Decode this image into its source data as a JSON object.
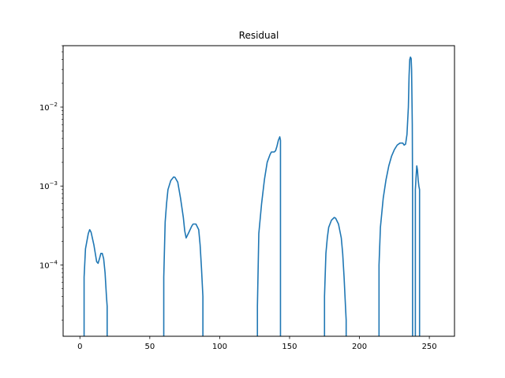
{
  "chart_data": {
    "type": "line",
    "title": "Residual",
    "xlabel": "",
    "ylabel": "",
    "yscale": "log",
    "xlim": [
      -12,
      268
    ],
    "ylim": [
      1.25e-05,
      0.06
    ],
    "grid": false,
    "line_color": "#1f77b4",
    "x_ticks": [
      {
        "value": 0,
        "label": "0"
      },
      {
        "value": 50,
        "label": "50"
      },
      {
        "value": 100,
        "label": "100"
      },
      {
        "value": 150,
        "label": "150"
      },
      {
        "value": 200,
        "label": "200"
      },
      {
        "value": 250,
        "label": "250"
      }
    ],
    "y_ticks": [
      {
        "value": 0.0001,
        "base": "10",
        "exp": "−4"
      },
      {
        "value": 0.001,
        "base": "10",
        "exp": "−3"
      },
      {
        "value": 0.01,
        "base": "10",
        "exp": "−2"
      }
    ],
    "segments": [
      {
        "x": [
          3,
          3,
          4,
          6,
          7,
          8,
          10,
          12,
          13,
          14,
          15,
          16,
          17,
          18,
          19,
          19.5,
          19.5
        ],
        "y": [
          1.25e-05,
          7e-05,
          0.00016,
          0.00025,
          0.00028,
          0.00026,
          0.00018,
          0.00011,
          0.000105,
          0.00012,
          0.00014,
          0.00014,
          0.00012,
          8e-05,
          4e-05,
          3e-05,
          1.25e-05
        ]
      },
      {
        "x": [
          60,
          60,
          61,
          62,
          63,
          65,
          67,
          68,
          70,
          72,
          74,
          75,
          76,
          78,
          80,
          81,
          83,
          85,
          86,
          87,
          88,
          88,
          88
        ],
        "y": [
          1.25e-05,
          7e-05,
          0.00035,
          0.0006,
          0.0009,
          0.00117,
          0.0013,
          0.00129,
          0.00112,
          0.0007,
          0.0004,
          0.00027,
          0.00022,
          0.00026,
          0.00031,
          0.00033,
          0.00033,
          0.00028,
          0.00018,
          9e-05,
          4e-05,
          3.5e-05,
          1.25e-05
        ]
      },
      {
        "x": [
          127,
          127,
          128,
          130,
          132,
          134,
          136,
          137,
          139,
          140,
          141,
          142,
          143,
          143.5,
          143.5,
          143.5
        ],
        "y": [
          1.25e-05,
          3e-05,
          0.00025,
          0.0006,
          0.0012,
          0.002,
          0.0025,
          0.0027,
          0.0027,
          0.0028,
          0.0032,
          0.0038,
          0.0042,
          0.0038,
          0.0024,
          1.25e-05
        ]
      },
      {
        "x": [
          175,
          175,
          176,
          177,
          178,
          180,
          182,
          183,
          185,
          187,
          188,
          189,
          190,
          190.5,
          190.5
        ],
        "y": [
          1.25e-05,
          4e-05,
          0.00014,
          0.00022,
          0.0003,
          0.00037,
          0.0004,
          0.00039,
          0.00033,
          0.00022,
          0.00014,
          7e-05,
          3e-05,
          2e-05,
          1.25e-05
        ]
      },
      {
        "x": [
          214,
          214,
          215,
          217,
          219,
          221,
          223,
          225,
          227,
          229,
          231,
          232,
          233,
          234,
          235,
          235.5,
          236,
          236.5,
          237,
          237.3,
          237.8,
          238,
          238,
          238
        ],
        "y": [
          1.25e-05,
          0.0001,
          0.0003,
          0.0007,
          0.0012,
          0.0018,
          0.0024,
          0.0029,
          0.0033,
          0.0035,
          0.0035,
          0.0033,
          0.0034,
          0.0045,
          0.01,
          0.025,
          0.04,
          0.043,
          0.041,
          0.03,
          0.006,
          0.0008,
          0.0001,
          1.25e-05
        ]
      },
      {
        "x": [
          240,
          240,
          240.5,
          241,
          241.5,
          242,
          242.5,
          243,
          243
        ],
        "y": [
          1.25e-05,
          0.0009,
          0.0013,
          0.0018,
          0.0016,
          0.0012,
          0.001,
          0.0009,
          1.25e-05
        ]
      }
    ]
  }
}
